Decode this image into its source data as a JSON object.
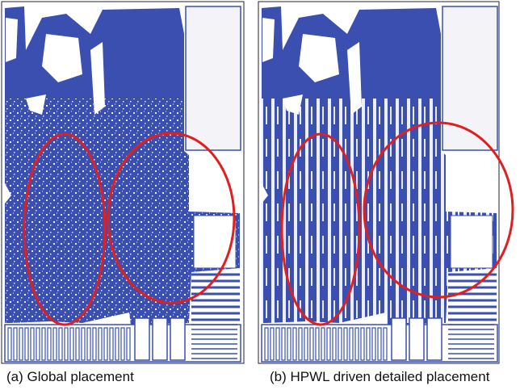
{
  "panels": [
    {
      "caption": "(a) Global placement"
    },
    {
      "caption": "(b) HPWL driven detailed placement"
    }
  ]
}
